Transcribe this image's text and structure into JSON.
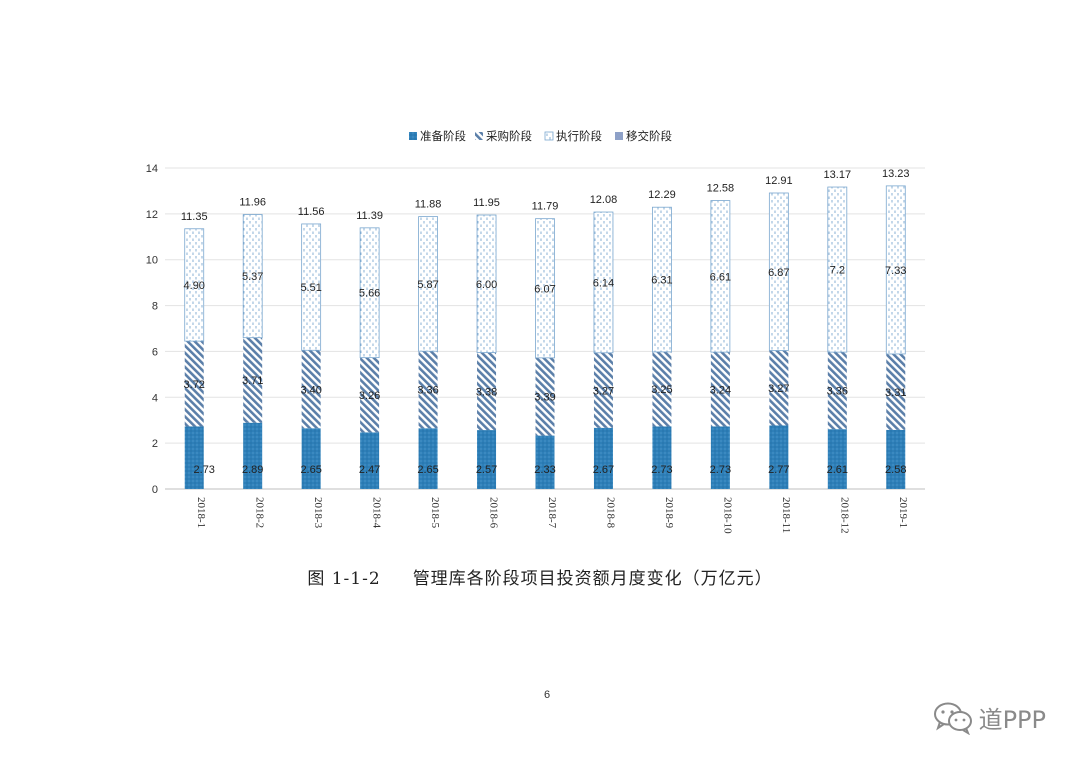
{
  "caption": {
    "label": "图 1-1-2",
    "text": "管理库各阶段项目投资额月度变化（万亿元）"
  },
  "page_number": "6",
  "watermark": {
    "icon": "wechat-icon",
    "text": "道PPP"
  },
  "colors": {
    "prep": "#2e7fb8",
    "procure": "#5b7fa9",
    "exec": "#7aa7cf",
    "transfer": "#8ea1c8",
    "grid": "#e3e3e3",
    "axis": "#bfbfbf"
  },
  "chart_data": {
    "type": "bar",
    "stacked": true,
    "categories": [
      "2018-1",
      "2018-2",
      "2018-3",
      "2018-4",
      "2018-5",
      "2018-6",
      "2018-7",
      "2018-8",
      "2018-9",
      "2018-10",
      "2018-11",
      "2018-12",
      "2019-1"
    ],
    "series": [
      {
        "name": "准备阶段",
        "values": [
          2.73,
          2.89,
          2.65,
          2.47,
          2.65,
          2.57,
          2.33,
          2.67,
          2.73,
          2.73,
          2.77,
          2.61,
          2.58
        ],
        "labels": [
          "2.73",
          "2.89",
          "2.65",
          "2.47",
          "2.65",
          "2.57",
          "2.33",
          "2.67",
          "2.73",
          "2.73",
          "2.77",
          "2.61",
          "2.58"
        ]
      },
      {
        "name": "采购阶段",
        "values": [
          3.72,
          3.71,
          3.4,
          3.26,
          3.36,
          3.38,
          3.39,
          3.27,
          3.25,
          3.24,
          3.27,
          3.36,
          3.31
        ],
        "labels": [
          "3.72",
          "3.71",
          "3.40",
          "3.26",
          "3.36",
          "3.38",
          "3.39",
          "3.27",
          "3.25",
          "3.24",
          "3.27",
          "3.36",
          "3.31"
        ]
      },
      {
        "name": "执行阶段",
        "values": [
          4.9,
          5.37,
          5.51,
          5.66,
          5.87,
          6.0,
          6.07,
          6.14,
          6.31,
          6.61,
          6.87,
          7.2,
          7.33
        ],
        "labels": [
          "4.90",
          "5.37",
          "5.51",
          "5.66",
          "5.87",
          "6.00",
          "6.07",
          "6.14",
          "6.31",
          "6.61",
          "6.87",
          "7.2",
          "7.33"
        ]
      },
      {
        "name": "移交阶段",
        "values": [
          0,
          0,
          0,
          0,
          0,
          0,
          0,
          0,
          0,
          0,
          0,
          0,
          0
        ],
        "labels": []
      }
    ],
    "totals": [
      "11.35",
      "11.96",
      "11.56",
      "11.39",
      "11.88",
      "11.95",
      "11.79",
      "12.08",
      "12.29",
      "12.58",
      "12.91",
      "13.17",
      "13.23"
    ],
    "ylim": [
      0,
      14
    ],
    "yticks": [
      0,
      2,
      4,
      6,
      8,
      10,
      12,
      14
    ],
    "grid": true,
    "legend_position": "top",
    "title": "",
    "xlabel": "",
    "ylabel": ""
  }
}
